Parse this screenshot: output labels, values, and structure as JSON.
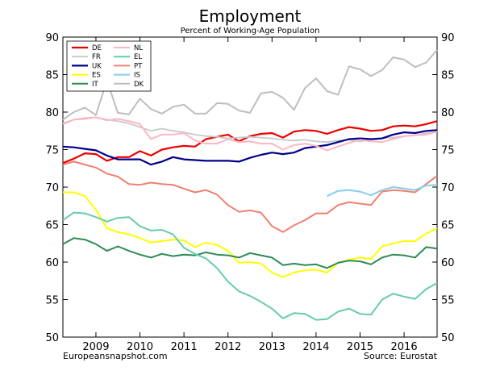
{
  "chart_data": {
    "type": "line",
    "title": "Employment",
    "subtitle": "Percent of Working-Age Population",
    "xlabel": "",
    "ylabel": "",
    "ylim": [
      50,
      90
    ],
    "yticks": [
      50,
      55,
      60,
      65,
      70,
      75,
      80,
      85,
      90
    ],
    "xlim": [
      2008.25,
      2016.75
    ],
    "xticks": [
      2009,
      2010,
      2011,
      2012,
      2013,
      2014,
      2015,
      2016
    ],
    "xtick_labels": [
      "2009",
      "2010",
      "2011",
      "2012",
      "2013",
      "2014",
      "2015",
      "2016"
    ],
    "x": [
      2008.25,
      2008.5,
      2008.75,
      2009.0,
      2009.25,
      2009.5,
      2009.75,
      2010.0,
      2010.25,
      2010.5,
      2010.75,
      2011.0,
      2011.25,
      2011.5,
      2011.75,
      2012.0,
      2012.25,
      2012.5,
      2012.75,
      2013.0,
      2013.25,
      2013.5,
      2013.75,
      2014.0,
      2014.25,
      2014.5,
      2014.75,
      2015.0,
      2015.25,
      2015.5,
      2015.75,
      2016.0,
      2016.25,
      2016.5,
      2016.75
    ],
    "grid": false,
    "legend": "top-left",
    "series": [
      {
        "name": "DE",
        "color": "#ee0000",
        "width": 2.2,
        "values": [
          73.2,
          73.8,
          74.5,
          74.4,
          73.5,
          74.0,
          74.0,
          74.8,
          74.2,
          75.0,
          75.3,
          75.5,
          75.4,
          76.4,
          76.7,
          77.0,
          76.1,
          76.8,
          77.1,
          77.2,
          76.6,
          77.4,
          77.6,
          77.5,
          77.1,
          77.6,
          78.0,
          77.8,
          77.5,
          77.6,
          78.1,
          78.2,
          78.1,
          78.4,
          78.8
        ]
      },
      {
        "name": "FR",
        "color": "#c8c8c8",
        "width": 1.8,
        "values": [
          78.5,
          79.0,
          79.2,
          79.3,
          79.0,
          78.8,
          78.5,
          78.0,
          77.5,
          77.8,
          77.5,
          77.3,
          77.0,
          76.8,
          76.7,
          76.5,
          76.6,
          76.7,
          76.6,
          76.5,
          76.3,
          76.2,
          76.3,
          76.1,
          76.0,
          76.2,
          76.3,
          76.1,
          76.3,
          76.5,
          76.6,
          76.8,
          76.9,
          77.2,
          77.4
        ]
      },
      {
        "name": "UK",
        "color": "#00008b",
        "width": 2.2,
        "values": [
          75.4,
          75.3,
          75.1,
          74.9,
          74.2,
          73.7,
          73.7,
          73.7,
          73.0,
          73.4,
          74.0,
          73.7,
          73.6,
          73.5,
          73.5,
          73.5,
          73.4,
          73.9,
          74.3,
          74.6,
          74.4,
          74.6,
          75.2,
          75.4,
          75.6,
          76.0,
          76.4,
          76.5,
          76.4,
          76.5,
          77.0,
          77.3,
          77.2,
          77.5,
          77.6
        ]
      },
      {
        "name": "ES",
        "color": "#ffff00",
        "width": 2.0,
        "values": [
          69.3,
          69.3,
          68.8,
          67.0,
          64.5,
          64.0,
          63.7,
          63.2,
          62.6,
          62.8,
          63.0,
          62.9,
          62.0,
          62.6,
          62.3,
          61.5,
          59.9,
          60.0,
          59.8,
          58.6,
          58.0,
          58.6,
          58.9,
          59.0,
          58.6,
          59.9,
          60.3,
          60.6,
          60.4,
          62.1,
          62.5,
          62.8,
          62.8,
          63.8,
          64.5
        ]
      },
      {
        "name": "IT",
        "color": "#2e8b57",
        "width": 2.0,
        "values": [
          62.4,
          63.2,
          63.0,
          62.4,
          61.5,
          62.1,
          61.5,
          61.0,
          60.6,
          61.1,
          60.8,
          61.0,
          60.9,
          61.3,
          61.0,
          60.9,
          60.6,
          61.2,
          60.9,
          60.6,
          59.6,
          59.8,
          59.6,
          59.7,
          59.2,
          59.9,
          60.2,
          60.1,
          59.7,
          60.6,
          61.0,
          60.9,
          60.6,
          62.0,
          61.8
        ]
      },
      {
        "name": "NL",
        "color": "#ffb6c1",
        "width": 2.0,
        "values": [
          78.4,
          79.0,
          79.1,
          79.3,
          78.9,
          79.1,
          78.8,
          78.4,
          76.4,
          77.0,
          77.0,
          77.2,
          76.2,
          75.8,
          75.8,
          76.4,
          76.0,
          76.1,
          75.8,
          75.8,
          75.0,
          75.6,
          75.8,
          75.5,
          74.9,
          75.4,
          75.9,
          76.3,
          76.1,
          76.0,
          76.4,
          76.8,
          76.9,
          77.0,
          77.4
        ]
      },
      {
        "name": "EL",
        "color": "#66cdaa",
        "width": 2.0,
        "values": [
          65.6,
          66.6,
          66.5,
          66.0,
          65.4,
          65.9,
          66.0,
          64.8,
          64.2,
          64.3,
          63.7,
          61.9,
          61.1,
          60.5,
          59.2,
          57.4,
          56.1,
          55.5,
          54.7,
          53.8,
          52.5,
          53.2,
          53.1,
          52.3,
          52.4,
          53.4,
          53.8,
          53.1,
          53.0,
          55.0,
          55.8,
          55.4,
          55.1,
          56.4,
          57.2
        ]
      },
      {
        "name": "PT",
        "color": "#f08070",
        "width": 2.0,
        "values": [
          73.0,
          73.4,
          73.0,
          72.6,
          71.8,
          71.4,
          70.4,
          70.3,
          70.6,
          70.4,
          70.3,
          69.8,
          69.3,
          69.6,
          69.0,
          67.6,
          66.7,
          66.9,
          66.6,
          64.8,
          64.0,
          64.9,
          65.6,
          66.5,
          66.5,
          67.6,
          68.0,
          67.8,
          67.6,
          69.4,
          69.6,
          69.5,
          69.3,
          70.4,
          71.5
        ]
      },
      {
        "name": "IS",
        "color": "#87ceeb",
        "width": 2.0,
        "values": [
          null,
          null,
          null,
          null,
          null,
          null,
          null,
          null,
          null,
          null,
          null,
          null,
          null,
          null,
          null,
          null,
          null,
          null,
          null,
          null,
          null,
          null,
          null,
          null,
          68.8,
          69.5,
          69.6,
          69.4,
          68.9,
          69.6,
          70.0,
          69.8,
          69.6,
          70.2,
          70.3
        ]
      },
      {
        "name": "DK",
        "color": "#bebebe",
        "width": 2.0,
        "values": [
          79.0,
          80.0,
          80.6,
          79.6,
          84.2,
          79.9,
          79.7,
          81.8,
          80.4,
          79.8,
          80.7,
          81.0,
          79.8,
          79.8,
          81.2,
          81.1,
          80.2,
          79.9,
          82.5,
          82.7,
          81.9,
          80.3,
          83.2,
          84.5,
          82.8,
          82.3,
          86.1,
          85.7,
          84.8,
          85.6,
          87.3,
          87.0,
          86.0,
          86.6,
          88.3
        ]
      }
    ],
    "footer_left": "Europeansnapshot.com",
    "footer_right": "Source: Eurostat"
  }
}
